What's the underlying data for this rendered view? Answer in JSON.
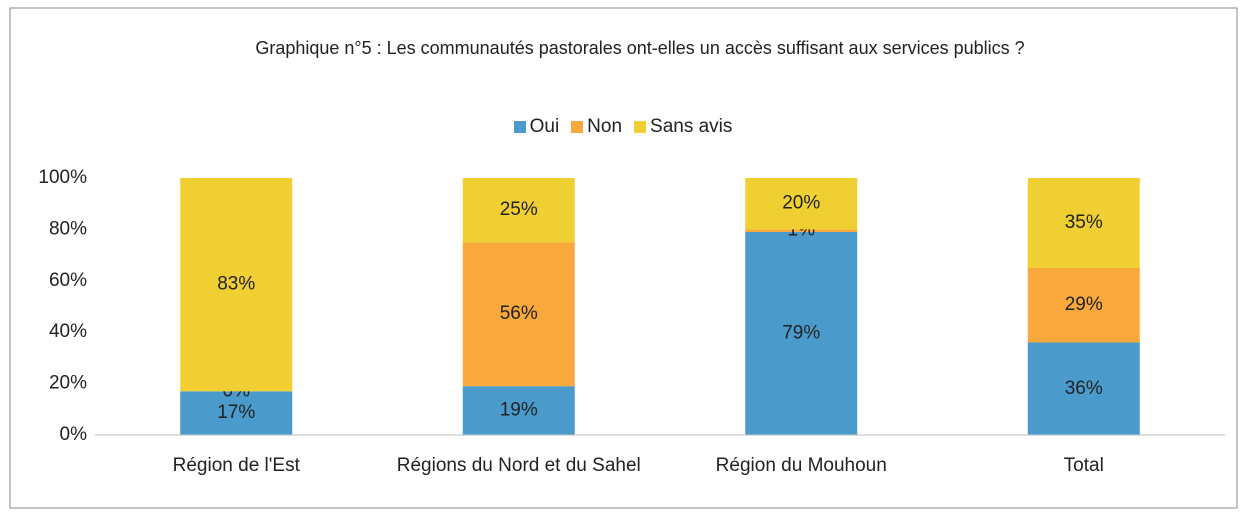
{
  "chart_data": {
    "type": "stacked_bar",
    "title": "Graphique n°5 : Les communautés pastorales ont-elles un accès suffisant aux services publics ?",
    "categories": [
      "Région de l'Est",
      "Régions du Nord et du Sahel",
      "Région du Mouhoun",
      "Total"
    ],
    "series": [
      {
        "name": "Oui",
        "color": "#4a9bcc",
        "values": [
          17,
          19,
          79,
          36
        ],
        "value_labels": [
          "17%",
          "19%",
          "79%",
          "36%"
        ]
      },
      {
        "name": "Non",
        "color": "#f9a93b",
        "values": [
          0,
          56,
          1,
          29
        ],
        "value_labels": [
          "0%",
          "56%",
          "1%",
          "29%"
        ]
      },
      {
        "name": "Sans avis",
        "color": "#f0cf32",
        "values": [
          83,
          25,
          20,
          35
        ],
        "value_labels": [
          "83%",
          "25%",
          "20%",
          "35%"
        ]
      }
    ],
    "ylim": [
      0,
      100
    ],
    "yticks": [
      {
        "value": 0,
        "label": "0%"
      },
      {
        "value": 20,
        "label": "20%"
      },
      {
        "value": 40,
        "label": "40%"
      },
      {
        "value": 60,
        "label": "60%"
      },
      {
        "value": 80,
        "label": "80%"
      },
      {
        "value": 100,
        "label": "100%"
      }
    ],
    "grid": false,
    "legend": "top"
  }
}
